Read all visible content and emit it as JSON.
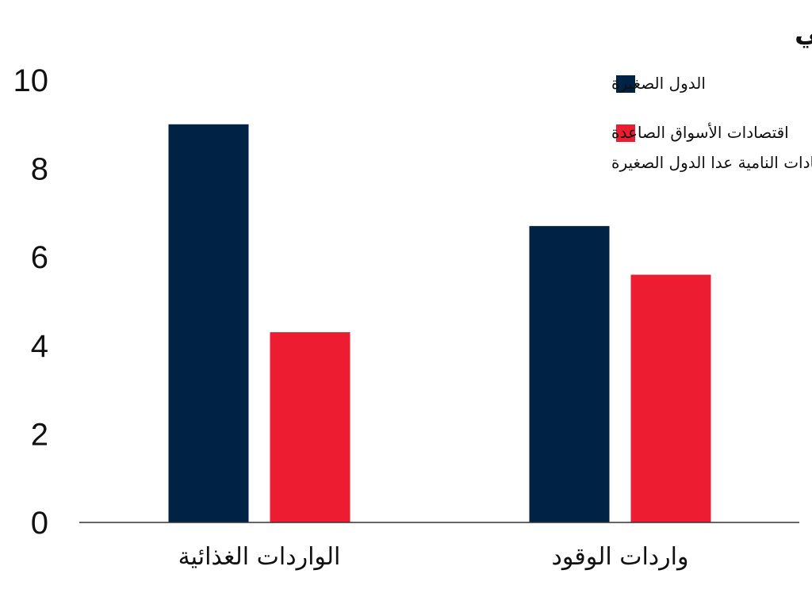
{
  "chart_data": {
    "type": "bar",
    "title": "% من إجمالي الناتج المحلي",
    "categories": [
      "الواردات الغذائية",
      "واردات الوقود"
    ],
    "series": [
      {
        "name": "الدول الصغيرة",
        "color": "#002244",
        "values": [
          9.0,
          6.7
        ]
      },
      {
        "name_lines": [
          "اقتصادات الأسواق الصاعدة",
          "والاقتصادات النامية عدا الدول الصغيرة"
        ],
        "color": "#EE1C31",
        "values": [
          4.3,
          5.6
        ]
      }
    ],
    "ylim": [
      0,
      10
    ],
    "yticks": [
      "0",
      "2",
      "4",
      "6",
      "8",
      "10"
    ],
    "grid": false,
    "legend_position": "top-right"
  }
}
